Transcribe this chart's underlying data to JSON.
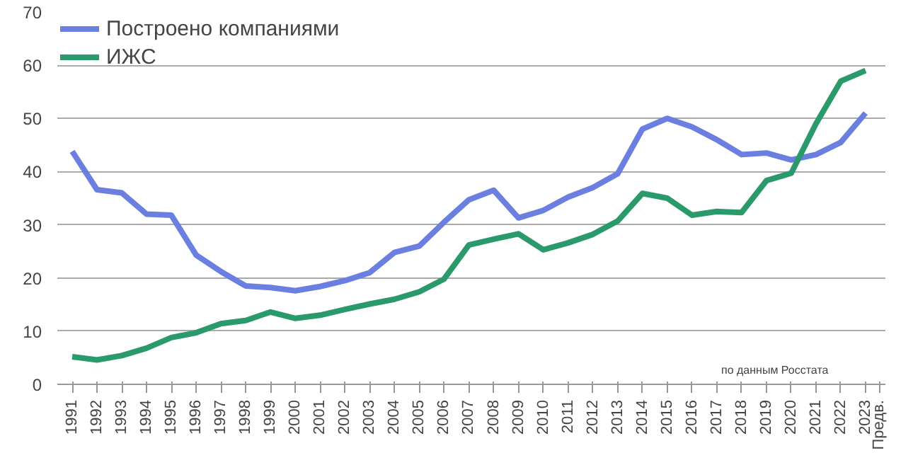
{
  "chart_data": {
    "type": "line",
    "categories": [
      "1991",
      "1992",
      "1993",
      "1994",
      "1995",
      "1996",
      "1997",
      "1998",
      "1999",
      "2000",
      "2001",
      "2002",
      "2003",
      "2004",
      "2005",
      "2006",
      "2007",
      "2008",
      "2009",
      "2010",
      "2011",
      "2012",
      "2013",
      "2014",
      "2015",
      "2016",
      "2017",
      "2018",
      "2019",
      "2020",
      "2021",
      "2022",
      "2023"
    ],
    "series": [
      {
        "name": "Построено компаниями",
        "color": "#6b7fe0",
        "values": [
          43.8,
          36.6,
          36,
          32,
          31.8,
          24.3,
          21.2,
          18.5,
          18.2,
          17.6,
          18.4,
          19.5,
          21,
          24.8,
          26,
          30.5,
          34.7,
          36.5,
          31.3,
          32.7,
          35.2,
          37,
          39.6,
          48,
          50,
          48.4,
          46,
          43.2,
          43.5,
          42.2,
          43.2,
          45.5,
          51
        ]
      },
      {
        "name": "ИЖС",
        "color": "#2a9a6a",
        "values": [
          5.2,
          4.6,
          5.4,
          6.8,
          8.8,
          9.7,
          11.4,
          12,
          13.6,
          12.4,
          13,
          14.1,
          15.1,
          16,
          17.4,
          19.8,
          26.2,
          27.3,
          28.3,
          25.3,
          26.6,
          28.2,
          30.7,
          35.9,
          35,
          31.8,
          32.5,
          32.3,
          38.3,
          39.7,
          49,
          57,
          59
        ]
      }
    ],
    "ylim": [
      0,
      70
    ],
    "yticks": [
      0,
      10,
      20,
      30,
      40,
      50,
      60,
      70
    ],
    "grid": "y",
    "legend": "top left",
    "line_style": "solid",
    "marker": "none",
    "annotations": [
      "Предв.",
      "по данным Росстата"
    ]
  }
}
